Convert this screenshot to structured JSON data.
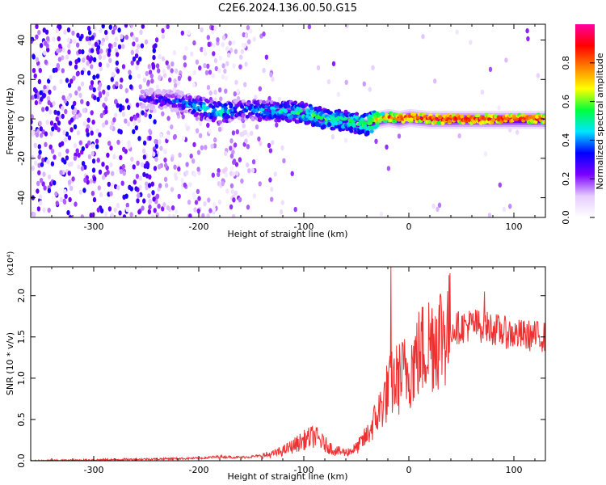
{
  "figure": {
    "title": "C2E6.2024.136.00.50.G15"
  },
  "chart_data": [
    {
      "type": "heatmap",
      "title": "C2E6.2024.136.00.50.G15",
      "xlabel": "Height of straight line (km)",
      "ylabel": "Frequency (Hz)",
      "xlim": [
        -360,
        130
      ],
      "ylim": [
        -50,
        48
      ],
      "x_ticks": [
        "-300",
        "-200",
        "-100",
        "0",
        "100"
      ],
      "y_ticks": [
        "-40",
        "-20",
        "0",
        "20",
        "40"
      ],
      "colorbar": {
        "label": "Normalized spectral amplitude",
        "range": [
          0.0,
          1.0
        ],
        "ticks": [
          "0.0",
          "0.2",
          "0.4",
          "0.6",
          "0.8"
        ],
        "colors": [
          "#ffffff",
          "#e6ccff",
          "#7a00ff",
          "#0000ff",
          "#00e5ff",
          "#00ff3c",
          "#ffff00",
          "#ff8000",
          "#ff0000",
          "#ff00a0"
        ]
      },
      "ridge": {
        "x": [
          -250,
          -220,
          -200,
          -180,
          -160,
          -140,
          -120,
          -100,
          -80,
          -60,
          -40,
          -30,
          -20,
          -10,
          0,
          20,
          60,
          100,
          130
        ],
        "frequency": [
          10,
          9,
          6,
          3,
          5,
          4,
          4,
          3,
          0,
          -1,
          -3,
          0,
          1,
          0,
          1,
          0,
          0,
          0,
          0
        ],
        "amplitude": [
          0.3,
          0.35,
          0.45,
          0.5,
          0.4,
          0.45,
          0.5,
          0.55,
          0.55,
          0.55,
          0.6,
          0.7,
          0.8,
          0.85,
          0.85,
          0.9,
          0.9,
          0.9,
          0.85
        ]
      }
    },
    {
      "type": "line",
      "xlabel": "Height of straight line (km)",
      "ylabel": "SNR (10 * v/v)",
      "y_multiplier": "(x10⁴)",
      "xlim": [
        -360,
        130
      ],
      "ylim": [
        0,
        2.35
      ],
      "x_ticks": [
        "-300",
        "-200",
        "-100",
        "0",
        "100"
      ],
      "y_ticks": [
        "0.0",
        "0.5",
        "1.0",
        "1.5",
        "2.0"
      ],
      "color": "#ee3030",
      "x": [
        -360,
        -300,
        -250,
        -200,
        -180,
        -160,
        -140,
        -130,
        -120,
        -110,
        -100,
        -90,
        -80,
        -70,
        -60,
        -50,
        -40,
        -30,
        -25,
        -20,
        -15,
        -10,
        -5,
        0,
        10,
        20,
        30,
        40,
        50,
        60,
        70,
        80,
        90,
        100,
        110,
        120,
        130
      ],
      "y": [
        0.0,
        0.01,
        0.02,
        0.03,
        0.05,
        0.04,
        0.06,
        0.08,
        0.12,
        0.18,
        0.25,
        0.3,
        0.2,
        0.12,
        0.1,
        0.15,
        0.3,
        0.55,
        0.7,
        0.85,
        0.95,
        1.0,
        1.05,
        1.1,
        1.3,
        1.45,
        1.55,
        1.6,
        1.62,
        1.65,
        1.63,
        1.6,
        1.56,
        1.53,
        1.52,
        1.51,
        1.5
      ],
      "spikes": [
        {
          "x": -17,
          "y": 2.35
        },
        {
          "x": 72,
          "y": 2.05
        }
      ]
    }
  ]
}
